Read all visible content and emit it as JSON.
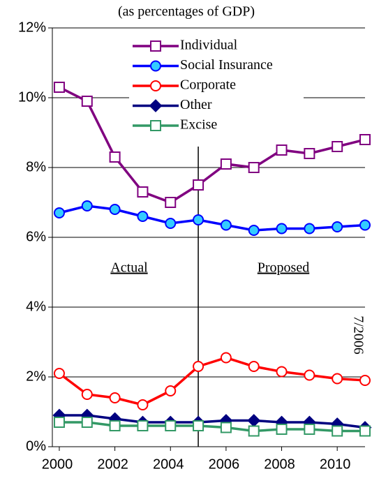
{
  "chart_data": {
    "type": "line",
    "title": "(as percentages of GDP)",
    "x": [
      2000,
      2001,
      2002,
      2003,
      2004,
      2005,
      2006,
      2007,
      2008,
      2009,
      2010,
      2011
    ],
    "series": [
      {
        "name": "Individual",
        "color": "#800080",
        "marker": "square",
        "marker_fill": "#ffffff",
        "values": [
          10.3,
          9.9,
          8.3,
          7.3,
          7.0,
          7.5,
          8.1,
          8.0,
          8.5,
          8.4,
          8.6,
          8.8
        ]
      },
      {
        "name": "Social Insurance",
        "color": "#0000ff",
        "marker": "circle",
        "marker_fill": "#33ccff",
        "values": [
          6.7,
          6.9,
          6.8,
          6.6,
          6.4,
          6.5,
          6.35,
          6.2,
          6.25,
          6.25,
          6.3,
          6.35
        ]
      },
      {
        "name": "Corporate",
        "color": "#ff0000",
        "marker": "circle",
        "marker_fill": "#ffffff",
        "values": [
          2.1,
          1.5,
          1.4,
          1.2,
          1.6,
          2.3,
          2.55,
          2.3,
          2.15,
          2.05,
          1.95,
          1.9
        ]
      },
      {
        "name": "Other",
        "color": "#000080",
        "marker": "diamond",
        "marker_fill": "#000080",
        "values": [
          0.9,
          0.9,
          0.8,
          0.7,
          0.7,
          0.7,
          0.75,
          0.75,
          0.7,
          0.7,
          0.65,
          0.55
        ]
      },
      {
        "name": "Excise",
        "color": "#339966",
        "marker": "square",
        "marker_fill": "#ffffff",
        "values": [
          0.7,
          0.7,
          0.6,
          0.6,
          0.6,
          0.6,
          0.55,
          0.45,
          0.5,
          0.5,
          0.45,
          0.45
        ]
      }
    ],
    "xlim": [
      1999.75,
      2011
    ],
    "xticks": [
      2000,
      2002,
      2004,
      2006,
      2008,
      2010
    ],
    "ylim": [
      0,
      12
    ],
    "yticks": [
      {
        "value": 0,
        "label": "0%"
      },
      {
        "value": 2,
        "label": "2%"
      },
      {
        "value": 4,
        "label": "4%"
      },
      {
        "value": 6,
        "label": "6%"
      },
      {
        "value": 8,
        "label": "8%"
      },
      {
        "value": 10,
        "label": "10%"
      },
      {
        "value": 12,
        "label": "12%"
      }
    ],
    "grid": true,
    "divider_x": 2005,
    "annotations": [
      "Actual",
      "Proposed",
      "7/2006"
    ]
  }
}
